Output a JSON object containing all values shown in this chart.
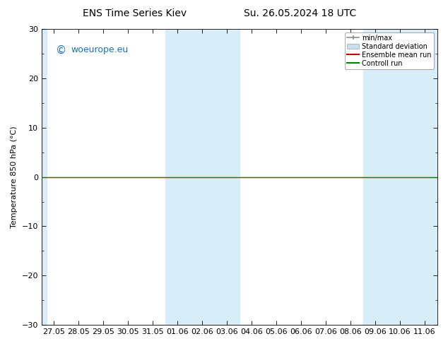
{
  "title_left": "ENS Time Series Kiev",
  "title_right": "Su. 26.05.2024 18 UTC",
  "ylabel": "Temperature 850 hPa (°C)",
  "ylim": [
    -30,
    30
  ],
  "yticks": [
    -30,
    -20,
    -10,
    0,
    10,
    20,
    30
  ],
  "xlabel_dates": [
    "27.05",
    "28.05",
    "29.05",
    "30.05",
    "31.05",
    "01.06",
    "02.06",
    "03.06",
    "04.06",
    "05.06",
    "06.06",
    "07.06",
    "08.06",
    "09.06",
    "10.06",
    "11.06"
  ],
  "watermark_text": "woeurope.eu",
  "watermark_color": "#1a6ebd",
  "background_color": "#ffffff",
  "plot_bg_color": "#ffffff",
  "shaded_color": "#d8edf8",
  "green_line_y": 0,
  "green_line_color": "#008000",
  "red_line_color": "#cc0000",
  "legend_entries": [
    "min/max",
    "Standard deviation",
    "Ensemble mean run",
    "Controll run"
  ],
  "legend_line_color": "#909090",
  "legend_std_color": "#c8dff0",
  "font_size": 8,
  "title_fontsize": 10
}
